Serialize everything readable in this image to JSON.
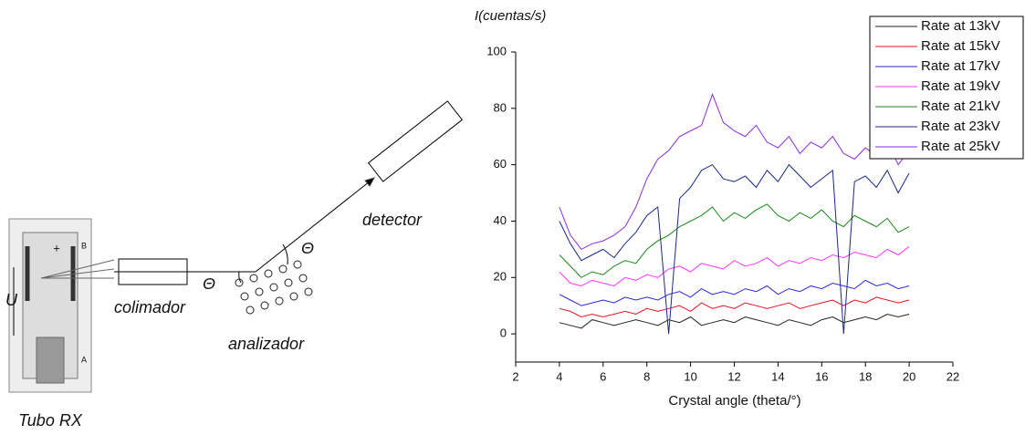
{
  "diagram": {
    "tube": "Tubo RX",
    "tube_plus": "+",
    "tube_a": "A",
    "tube_b": "B",
    "voltage": "U",
    "collimator": "colimador",
    "analyzer": "analizador",
    "detector": "detector",
    "theta_in": "Θ",
    "theta_out": "Θ"
  },
  "chart_data": {
    "type": "line",
    "y_label": "I(cuentas/s)",
    "x_label": "Crystal angle (theta/°)",
    "x": [
      4,
      4.5,
      5,
      5.5,
      6,
      6.5,
      7,
      7.5,
      8,
      8.5,
      9,
      9.5,
      10,
      10.5,
      11,
      11.5,
      12,
      12.5,
      13,
      13.5,
      14,
      14.5,
      15,
      15.5,
      16,
      16.5,
      17,
      17.5,
      18,
      18.5,
      19,
      19.5,
      20
    ],
    "series": [
      {
        "name": "Rate at 13kV",
        "color": "#222222",
        "values": [
          4,
          3,
          2,
          5,
          4,
          3,
          4,
          5,
          4,
          3,
          5,
          4,
          6,
          3,
          4,
          5,
          4,
          6,
          5,
          4,
          3,
          5,
          4,
          3,
          5,
          6,
          4,
          5,
          6,
          5,
          7,
          6,
          7
        ]
      },
      {
        "name": "Rate at 15kV",
        "color": "#e8141c",
        "values": [
          9,
          8,
          6,
          7,
          6,
          7,
          8,
          7,
          9,
          8,
          9,
          10,
          8,
          11,
          9,
          10,
          9,
          11,
          10,
          9,
          10,
          11,
          9,
          10,
          11,
          12,
          10,
          12,
          11,
          13,
          12,
          11,
          12
        ]
      },
      {
        "name": "Rate at 17kV",
        "color": "#2a2ad6",
        "values": [
          14,
          12,
          10,
          11,
          12,
          11,
          13,
          12,
          13,
          12,
          14,
          15,
          13,
          16,
          14,
          15,
          14,
          16,
          15,
          17,
          14,
          16,
          15,
          17,
          16,
          18,
          17,
          16,
          19,
          17,
          18,
          16,
          17
        ]
      },
      {
        "name": "Rate at 19kV",
        "color": "#ff33ff",
        "values": [
          22,
          18,
          17,
          19,
          18,
          17,
          20,
          19,
          21,
          20,
          23,
          24,
          22,
          25,
          24,
          23,
          26,
          24,
          25,
          27,
          24,
          26,
          25,
          27,
          26,
          28,
          27,
          29,
          28,
          27,
          30,
          28,
          31
        ]
      },
      {
        "name": "Rate at 21kV",
        "color": "#1a8a1a",
        "values": [
          28,
          24,
          20,
          22,
          21,
          24,
          26,
          25,
          30,
          33,
          35,
          38,
          40,
          42,
          45,
          40,
          43,
          41,
          44,
          46,
          42,
          40,
          43,
          41,
          44,
          40,
          38,
          42,
          40,
          38,
          41,
          36,
          38
        ]
      },
      {
        "name": "Rate at 23kV",
        "color": "#1a2a8a",
        "values": [
          40,
          32,
          26,
          28,
          30,
          27,
          32,
          36,
          42,
          45,
          0,
          48,
          52,
          58,
          60,
          55,
          54,
          56,
          52,
          58,
          54,
          60,
          56,
          52,
          55,
          58,
          0,
          54,
          56,
          52,
          58,
          50,
          57
        ]
      },
      {
        "name": "Rate at 25kV",
        "color": "#8a2be2",
        "values": [
          45,
          35,
          30,
          32,
          33,
          35,
          38,
          45,
          55,
          62,
          65,
          70,
          72,
          74,
          85,
          75,
          72,
          70,
          74,
          68,
          66,
          70,
          64,
          68,
          66,
          70,
          64,
          62,
          66,
          63,
          68,
          60,
          65
        ]
      }
    ],
    "xlim": [
      2,
      22
    ],
    "xticks": [
      2,
      4,
      6,
      8,
      10,
      12,
      14,
      16,
      18,
      20,
      22
    ],
    "ylim": [
      -10,
      100
    ],
    "yticks": [
      0,
      20,
      40,
      60,
      80,
      100
    ],
    "legend": "top-right"
  }
}
